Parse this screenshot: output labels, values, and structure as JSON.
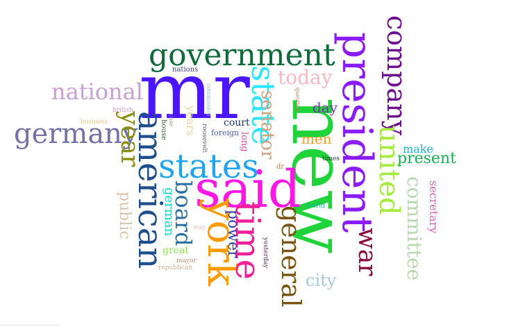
{
  "words": [
    {
      "text": "mr",
      "color": "#4b16ff"
    },
    {
      "text": "new",
      "color": "#1fd43a"
    },
    {
      "text": "said",
      "color": "#ff17e4"
    },
    {
      "text": "president",
      "color": "#8a1cff"
    },
    {
      "text": "government",
      "color": "#0f6b3a"
    },
    {
      "text": "states",
      "color": "#22a4ee"
    },
    {
      "text": "york",
      "color": "#ff9a00"
    },
    {
      "text": "american",
      "color": "#1e4f8c"
    },
    {
      "text": "state",
      "color": "#2fe6ff"
    },
    {
      "text": "time",
      "color": "#f0209a"
    },
    {
      "text": "company",
      "color": "#6b0f8f"
    },
    {
      "text": "united",
      "color": "#a4ec3a"
    },
    {
      "text": "germany",
      "color": "#7272a6"
    },
    {
      "text": "national",
      "color": "#c8a0d4"
    },
    {
      "text": "general",
      "color": "#7a5410"
    },
    {
      "text": "war",
      "color": "#8a0a3c"
    },
    {
      "text": "year",
      "color": "#8a8f10"
    },
    {
      "text": "board",
      "color": "#2a6fa0"
    },
    {
      "text": "committee",
      "color": "#b8d8b0"
    },
    {
      "text": "today",
      "color": "#f8b8c0"
    },
    {
      "text": "senator",
      "color": "#d4a080"
    },
    {
      "text": "present",
      "color": "#14b050"
    },
    {
      "text": "public",
      "color": "#d8c4a8"
    },
    {
      "text": "city",
      "color": "#a8c8d8"
    },
    {
      "text": "power",
      "color": "#3a3aa0"
    },
    {
      "text": "day",
      "color": "#7a30b0"
    },
    {
      "text": "men",
      "color": "#f0a020"
    },
    {
      "text": "german",
      "color": "#20d0c8"
    },
    {
      "text": "secretary",
      "color": "#e060b8"
    },
    {
      "text": "make",
      "color": "#20b0d0"
    },
    {
      "text": "years",
      "color": "#e8d8a0"
    },
    {
      "text": "great",
      "color": "#90e060"
    },
    {
      "text": "court",
      "color": "#203070"
    },
    {
      "text": "long",
      "color": "#e050a0"
    },
    {
      "text": "foreign",
      "color": "#5060b0"
    },
    {
      "text": "house",
      "color": "#306030"
    },
    {
      "text": "nations",
      "color": "#404080"
    },
    {
      "text": "business",
      "color": "#e8c890"
    },
    {
      "text": "british",
      "color": "#d0a0c0"
    },
    {
      "text": "roosevelt",
      "color": "#606060"
    },
    {
      "text": "commission",
      "color": "#a0b8d0"
    },
    {
      "text": "case",
      "color": "#909090"
    },
    {
      "text": "question",
      "color": "#b08060"
    },
    {
      "text": "times",
      "color": "#303030"
    },
    {
      "text": "world",
      "color": "#20b0a0"
    },
    {
      "text": "dr",
      "color": "#c08040"
    },
    {
      "text": "yesterday",
      "color": "#603060"
    },
    {
      "text": "mayor",
      "color": "#c09070"
    },
    {
      "text": "republican",
      "color": "#d0b090"
    },
    {
      "text": "way",
      "color": "#e8c0c0"
    }
  ]
}
